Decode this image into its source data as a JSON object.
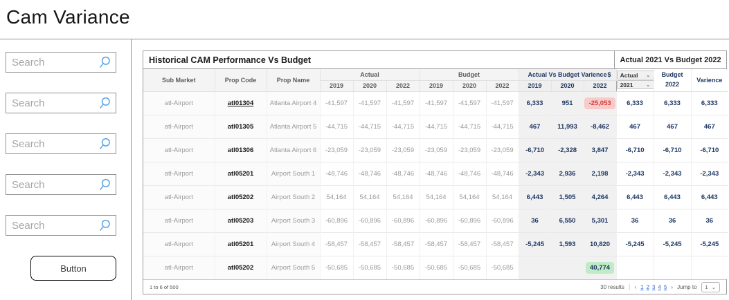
{
  "page": {
    "title": "Cam Variance"
  },
  "sidebar": {
    "search_placeholder": "Search",
    "search_count": 5,
    "button_label": "Button"
  },
  "icons": {
    "chevron": "⌄",
    "search": "magnifier"
  },
  "colors": {
    "navy": "#1f3864",
    "accent_blue": "#56a2e8",
    "pager_blue": "#2e6bd6",
    "red_text": "#d63a3a",
    "red_bg": "#f9caca",
    "green_bg": "#bfecc6"
  },
  "table": {
    "title": "Historical CAM Performance Vs Budget",
    "right_header_title": "Actual 2021 Vs Budget 2022",
    "columns": {
      "sub_market": "Sub Market",
      "prop_code": "Prop Code",
      "prop_name": "Prop Name",
      "actual_group": "Actual",
      "budget_group": "Budget",
      "variance_group": "Actual Vs Budget Varience",
      "variance_dollar": "$",
      "years": [
        "2019",
        "2020",
        "2022"
      ],
      "right_actual_label": "Actual",
      "right_actual_year": "2021",
      "right_budget_label": "Budget",
      "right_budget_year": "2022",
      "right_variance_label": "Varience"
    },
    "rows": [
      {
        "sub_market": "atl-Airport",
        "prop_code": "atl01304",
        "prop_code_link": true,
        "prop_name": "Atlanta Airport 4",
        "actual": [
          "-41,597",
          "-41,597",
          "-41,597"
        ],
        "budget": [
          "-41,597",
          "-41,597",
          "-41,597"
        ],
        "variance": [
          "6,333",
          "951",
          "-25,053"
        ],
        "variance_highlight": [
          null,
          null,
          "red"
        ],
        "right": [
          "6,333",
          "6,333",
          "6,333"
        ]
      },
      {
        "sub_market": "atl-Airport",
        "prop_code": "atl01305",
        "prop_code_link": false,
        "prop_name": "Atlanta Airport 5",
        "actual": [
          "-44,715",
          "-44,715",
          "-44,715"
        ],
        "budget": [
          "-44,715",
          "-44,715",
          "-44,715"
        ],
        "variance": [
          "467",
          "11,993",
          "-8,462"
        ],
        "variance_highlight": [
          null,
          null,
          null
        ],
        "right": [
          "467",
          "467",
          "467"
        ]
      },
      {
        "sub_market": "atl-Airport",
        "prop_code": "atl01306",
        "prop_code_link": false,
        "prop_name": "Atlanta Airport 6",
        "actual": [
          "-23,059",
          "-23,059",
          "-23,059"
        ],
        "budget": [
          "-23,059",
          "-23,059",
          "-23,059"
        ],
        "variance": [
          "-6,710",
          "-2,328",
          "3,847"
        ],
        "variance_highlight": [
          null,
          null,
          null
        ],
        "right": [
          "-6,710",
          "-6,710",
          "-6,710"
        ]
      },
      {
        "sub_market": "atl-Airport",
        "prop_code": "atl05201",
        "prop_code_link": false,
        "prop_name": "Airport South 1",
        "actual": [
          "-48,746",
          "-48,746",
          "-48,746"
        ],
        "budget": [
          "-48,746",
          "-48,746",
          "-48,746"
        ],
        "variance": [
          "-2,343",
          "2,936",
          "2,198"
        ],
        "variance_highlight": [
          null,
          null,
          null
        ],
        "right": [
          "-2,343",
          "-2,343",
          "-2,343"
        ]
      },
      {
        "sub_market": "atl-Airport",
        "prop_code": "atl05202",
        "prop_code_link": false,
        "prop_name": "Airport South 2",
        "actual": [
          "54,164",
          "54,164",
          "54,164"
        ],
        "budget": [
          "54,164",
          "54,164",
          "54,164"
        ],
        "variance": [
          "6,443",
          "1,505",
          "4,264"
        ],
        "variance_highlight": [
          null,
          null,
          null
        ],
        "right": [
          "6,443",
          "6,443",
          "6,443"
        ]
      },
      {
        "sub_market": "atl-Airport",
        "prop_code": "atl05203",
        "prop_code_link": false,
        "prop_name": "Airport South 3",
        "actual": [
          "-60,896",
          "-60,896",
          "-60,896"
        ],
        "budget": [
          "-60,896",
          "-60,896",
          "-60,896"
        ],
        "variance": [
          "36",
          "6,550",
          "5,301"
        ],
        "variance_highlight": [
          null,
          null,
          null
        ],
        "right": [
          "36",
          "36",
          "36"
        ]
      },
      {
        "sub_market": "atl-Airport",
        "prop_code": "atl05201",
        "prop_code_link": false,
        "prop_name": "Airport South 4",
        "actual": [
          "-58,457",
          "-58,457",
          "-58,457"
        ],
        "budget": [
          "-58,457",
          "-58,457",
          "-58,457"
        ],
        "variance": [
          "-5,245",
          "1,593",
          "10,820"
        ],
        "variance_highlight": [
          null,
          null,
          null
        ],
        "right": [
          "-5,245",
          "-5,245",
          "-5,245"
        ]
      },
      {
        "sub_market": "atl-Airport",
        "prop_code": "atl05202",
        "prop_code_link": false,
        "prop_name": "Airport South 5",
        "actual": [
          "-50,685",
          "-50,685",
          "-50,685"
        ],
        "budget": [
          "-50,685",
          "-50,685",
          "-50,685"
        ],
        "variance": [
          "",
          "",
          "40,774"
        ],
        "variance_highlight": [
          null,
          null,
          "green"
        ],
        "right": [
          "",
          "",
          ""
        ]
      }
    ],
    "footer": {
      "range_text": "1 to 6 of 500",
      "results_text": "30 results",
      "divider": "|",
      "prev": "‹",
      "next": "›",
      "pages": [
        "1",
        "2",
        "3",
        "4",
        "5"
      ],
      "jump_label": "Jump to",
      "jump_value": "1"
    }
  }
}
